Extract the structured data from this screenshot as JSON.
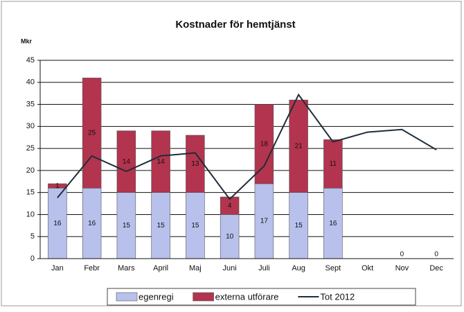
{
  "chart_data": {
    "type": "bar",
    "title": "Kostnader för hemtjänst",
    "y_label": "Mkr",
    "categories": [
      "Jan",
      "Febr",
      "Mars",
      "April",
      "Maj",
      "Juni",
      "Juli",
      "Aug",
      "Sept",
      "Okt",
      "Nov",
      "Dec"
    ],
    "series": [
      {
        "name": "egenregi",
        "color": "#b8c0ec",
        "values": [
          16,
          16,
          15,
          15,
          15,
          10,
          17,
          15,
          16,
          null,
          0,
          0
        ]
      },
      {
        "name": "externa utförare",
        "color": "#b3344e",
        "values": [
          1,
          25,
          14,
          14,
          13,
          4,
          18,
          21,
          11,
          null,
          null,
          null
        ]
      },
      {
        "name": "Tot 2012",
        "type": "line",
        "color": "#1f2d3a",
        "values": [
          13.8,
          23.3,
          19.8,
          23.3,
          24,
          13.5,
          21,
          37.2,
          26.5,
          28.7,
          29.3,
          24.7
        ]
      }
    ],
    "ylim": [
      0,
      45
    ],
    "yticks": [
      0,
      5,
      10,
      15,
      20,
      25,
      30,
      35,
      40,
      45
    ],
    "grid": true,
    "legend": "bottom"
  }
}
